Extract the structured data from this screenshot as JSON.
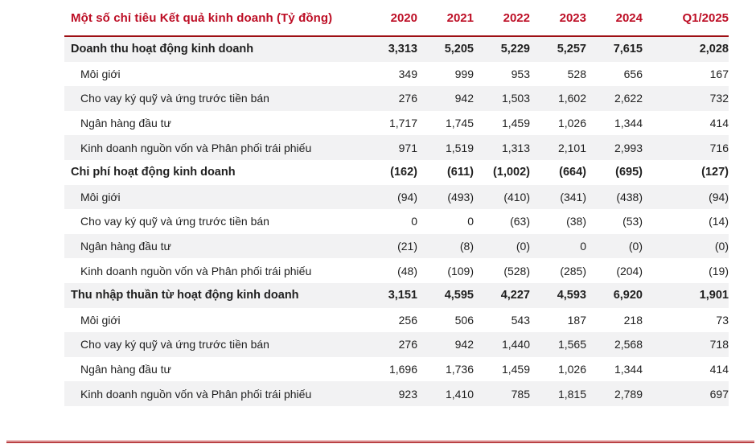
{
  "table": {
    "title": "Một số chỉ tiêu Kết quả kinh doanh (Tỷ đồng)",
    "columns": [
      "2020",
      "2021",
      "2022",
      "2023",
      "2024",
      "Q1/2025"
    ],
    "rows": [
      {
        "label": "Doanh thu hoạt động kinh doanh",
        "type": "section",
        "values": [
          "3,313",
          "5,205",
          "5,229",
          "5,257",
          "7,615",
          "2,028"
        ]
      },
      {
        "label": "Môi giới",
        "type": "sub",
        "values": [
          "349",
          "999",
          "953",
          "528",
          "656",
          "167"
        ]
      },
      {
        "label": "Cho vay ký quỹ và ứng trước tiền bán",
        "type": "sub",
        "values": [
          "276",
          "942",
          "1,503",
          "1,602",
          "2,622",
          "732"
        ]
      },
      {
        "label": "Ngân hàng đầu tư",
        "type": "sub",
        "values": [
          "1,717",
          "1,745",
          "1,459",
          "1,026",
          "1,344",
          "414"
        ]
      },
      {
        "label": "Kinh doanh nguồn vốn và Phân phối trái phiếu",
        "type": "sub",
        "values": [
          "971",
          "1,519",
          "1,313",
          "2,101",
          "2,993",
          "716"
        ]
      },
      {
        "label": "Chi phí hoạt động kinh doanh",
        "type": "section",
        "values": [
          "(162)",
          "(611)",
          "(1,002)",
          "(664)",
          "(695)",
          "(127)"
        ]
      },
      {
        "label": "Môi giới",
        "type": "sub",
        "values": [
          "(94)",
          "(493)",
          "(410)",
          "(341)",
          "(438)",
          "(94)"
        ]
      },
      {
        "label": "Cho vay ký quỹ và ứng trước tiền bán",
        "type": "sub",
        "values": [
          "0",
          "0",
          "(63)",
          "(38)",
          "(53)",
          "(14)"
        ]
      },
      {
        "label": "Ngân hàng đầu tư",
        "type": "sub",
        "values": [
          "(21)",
          "(8)",
          "(0)",
          "0",
          "(0)",
          "(0)"
        ]
      },
      {
        "label": "Kinh doanh nguồn vốn và Phân phối trái phiếu",
        "type": "sub",
        "values": [
          "(48)",
          "(109)",
          "(528)",
          "(285)",
          "(204)",
          "(19)"
        ]
      },
      {
        "label": "Thu nhập thuần từ hoạt động kinh doanh",
        "type": "section",
        "values": [
          "3,151",
          "4,595",
          "4,227",
          "4,593",
          "6,920",
          "1,901"
        ]
      },
      {
        "label": "Môi giới",
        "type": "sub",
        "values": [
          "256",
          "506",
          "543",
          "187",
          "218",
          "73"
        ]
      },
      {
        "label": "Cho vay ký quỹ và ứng trước tiền bán",
        "type": "sub",
        "values": [
          "276",
          "942",
          "1,440",
          "1,565",
          "2,568",
          "718"
        ]
      },
      {
        "label": "Ngân hàng đầu tư",
        "type": "sub",
        "values": [
          "1,696",
          "1,736",
          "1,459",
          "1,026",
          "1,344",
          "414"
        ]
      },
      {
        "label": "Kinh doanh nguồn vốn và Phân phối trái phiếu",
        "type": "sub",
        "values": [
          "923",
          "1,410",
          "785",
          "1,815",
          "2,789",
          "697"
        ]
      }
    ]
  },
  "colors": {
    "accent_red": "#bd0f26",
    "header_rule": "#9e0f14",
    "row_stripe": "#f2f2f3",
    "body_text": "#1f1f1f",
    "bottom_rule_dark": "#a50d12",
    "bottom_rule_light": "#f5dcdc"
  }
}
